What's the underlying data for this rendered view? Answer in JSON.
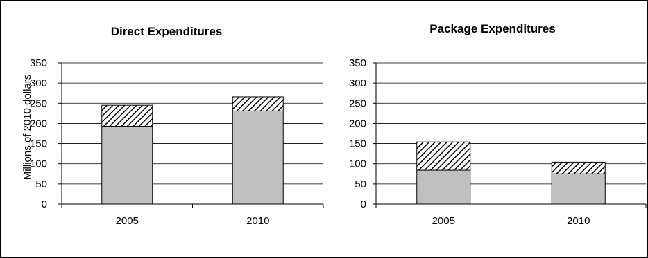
{
  "chart_data": [
    {
      "type": "bar",
      "stacked": true,
      "title": "Direct Expenditures",
      "ylabel": "Millions of 2010 dollars",
      "categories": [
        "2005",
        "2010"
      ],
      "ylim": [
        0,
        350
      ],
      "yticks": [
        0,
        50,
        100,
        150,
        200,
        250,
        300,
        350
      ],
      "grid": true,
      "series": [
        {
          "values": [
            193,
            231
          ],
          "color": "#c0c0c0"
        },
        {
          "values": [
            52,
            35
          ],
          "pattern": "diagonal-hatch"
        }
      ]
    },
    {
      "type": "bar",
      "stacked": true,
      "title": "Package Expenditures",
      "ylabel": "",
      "categories": [
        "2005",
        "2010"
      ],
      "ylim": [
        0,
        350
      ],
      "yticks": [
        0,
        50,
        100,
        150,
        200,
        250,
        300,
        350
      ],
      "grid": true,
      "series": [
        {
          "values": [
            84,
            75
          ],
          "color": "#c0c0c0"
        },
        {
          "values": [
            70,
            29
          ],
          "pattern": "diagonal-hatch"
        }
      ]
    }
  ]
}
